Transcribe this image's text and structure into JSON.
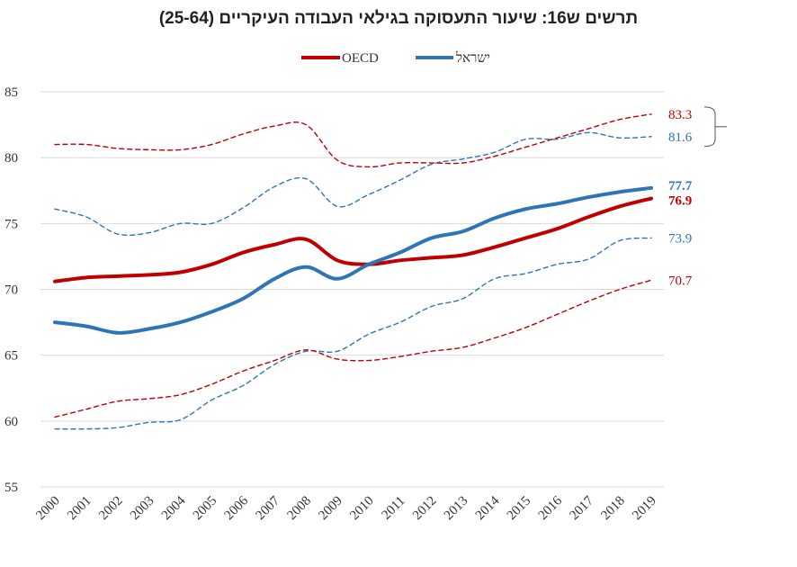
{
  "chart_data": {
    "type": "line",
    "title": "תרשים ש16: שיעור התעסוקה בגילאי העבודה העיקריים (25-64)",
    "xlabel": "",
    "ylabel": "",
    "ylim": [
      55,
      85
    ],
    "yticks": [
      55,
      60,
      65,
      70,
      75,
      80,
      85
    ],
    "grid": "horizontal",
    "legend_position": "top-center",
    "categories": [
      "2000",
      "2001",
      "2002",
      "2003",
      "2004",
      "2005",
      "2006",
      "2007",
      "2008",
      "2009",
      "2010",
      "2011",
      "2012",
      "2013",
      "2014",
      "2015",
      "2016",
      "2017",
      "2018",
      "2019"
    ],
    "legend": [
      {
        "name": "OECD",
        "color": "#c00000"
      },
      {
        "name": "ישראל",
        "color": "#2e75b6"
      }
    ],
    "series": [
      {
        "name": "OECD",
        "style": "solid",
        "color": "#c00000",
        "values": [
          70.6,
          70.9,
          71.0,
          71.1,
          71.3,
          71.9,
          72.8,
          73.4,
          73.8,
          72.2,
          71.9,
          72.2,
          72.4,
          72.6,
          73.2,
          73.9,
          74.6,
          75.5,
          76.3,
          76.9
        ],
        "end_label": "76.9",
        "end_label_bold": true
      },
      {
        "name": "ישראל",
        "style": "solid",
        "color": "#2e75b6",
        "values": [
          67.5,
          67.2,
          66.7,
          67.0,
          67.5,
          68.3,
          69.3,
          70.8,
          71.7,
          70.8,
          71.9,
          72.8,
          73.9,
          74.4,
          75.4,
          76.1,
          76.5,
          77.0,
          77.4,
          77.7
        ],
        "end_label": "77.7",
        "end_label_bold": true
      },
      {
        "style": "dashed",
        "color": "#c00000",
        "values": [
          81.0,
          81.0,
          80.7,
          80.6,
          80.6,
          81.0,
          81.8,
          82.4,
          82.5,
          79.8,
          79.3,
          79.6,
          79.6,
          79.6,
          80.1,
          80.8,
          81.5,
          82.2,
          82.9,
          83.3
        ],
        "end_label": "83.3"
      },
      {
        "style": "dashed",
        "color": "#2e75b6",
        "values": [
          76.1,
          75.5,
          74.2,
          74.3,
          75.0,
          75.0,
          76.2,
          77.8,
          78.4,
          76.3,
          77.2,
          78.3,
          79.5,
          79.9,
          80.4,
          81.4,
          81.4,
          81.9,
          81.5,
          81.6
        ],
        "end_label": "81.6"
      },
      {
        "style": "dashed",
        "color": "#2e75b6",
        "values": [
          59.4,
          59.4,
          59.5,
          59.9,
          60.1,
          61.6,
          62.7,
          64.3,
          65.3,
          65.3,
          66.6,
          67.5,
          68.7,
          69.3,
          70.8,
          71.2,
          71.9,
          72.3,
          73.7,
          73.9
        ],
        "end_label": "73.9"
      },
      {
        "style": "dashed",
        "color": "#c00000",
        "values": [
          60.3,
          60.9,
          61.5,
          61.7,
          62.0,
          62.8,
          63.8,
          64.6,
          65.4,
          64.7,
          64.6,
          64.9,
          65.3,
          65.6,
          66.3,
          67.1,
          68.1,
          69.1,
          70.0,
          70.7
        ],
        "end_label": "70.7"
      }
    ]
  }
}
